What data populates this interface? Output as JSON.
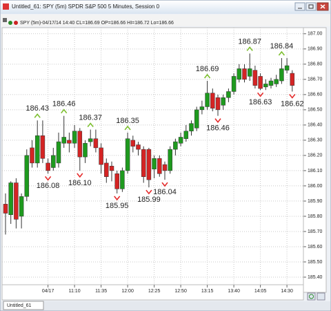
{
  "window": {
    "title": "Untitled_61: SPY (5m) SPDR S&P 500 5 Minutes, Session 0",
    "tab": "Untitled_61"
  },
  "chart_data": {
    "type": "candlestick",
    "subtitle": "SPY (5m)-04/17/14 14:40 CL=186.69 OP=186.66 HI=186.72 Lo=186.66",
    "categories": [
      null,
      null,
      null,
      null,
      null,
      null,
      null,
      null,
      "04/17",
      null,
      null,
      null,
      null,
      "11:10",
      null,
      null,
      null,
      null,
      "11:35",
      null,
      null,
      null,
      null,
      "12:00",
      null,
      null,
      null,
      null,
      "12:25",
      null,
      null,
      null,
      null,
      "12:50",
      null,
      null,
      null,
      null,
      "13:15",
      null,
      null,
      null,
      null,
      "13:40",
      null,
      null,
      null,
      null,
      "14:05",
      null,
      null,
      null,
      null,
      "14:30",
      null
    ],
    "open": [
      185.88,
      185.81,
      186.02,
      185.8,
      185.93,
      186.25,
      186.15,
      186.33,
      186.15,
      186.12,
      186.15,
      186.28,
      186.3,
      186.28,
      186.36,
      186.19,
      186.29,
      186.31,
      186.25,
      186.15,
      186.13,
      186.08,
      185.98,
      186.1,
      186.3,
      186.27,
      186.24,
      186.24,
      186.11,
      186.18,
      186.14,
      186.1,
      186.24,
      186.28,
      186.31,
      186.36,
      186.38,
      186.5,
      186.52,
      186.61,
      186.58,
      186.53,
      186.58,
      186.62,
      186.7,
      186.77,
      186.72,
      186.76,
      186.72,
      186.65,
      186.66,
      186.67,
      186.69,
      186.76,
      186.74
    ],
    "high": [
      185.95,
      186.03,
      186.05,
      185.95,
      186.24,
      186.3,
      186.43,
      186.43,
      186.18,
      186.25,
      186.35,
      186.46,
      186.35,
      186.4,
      186.38,
      186.3,
      186.37,
      186.37,
      186.28,
      186.18,
      186.16,
      186.1,
      186.12,
      186.35,
      186.33,
      186.29,
      186.26,
      186.25,
      186.2,
      186.2,
      186.16,
      186.26,
      186.31,
      186.35,
      186.4,
      186.43,
      186.52,
      186.56,
      186.69,
      186.64,
      186.6,
      186.6,
      186.64,
      186.74,
      186.8,
      186.8,
      186.87,
      186.79,
      186.74,
      186.7,
      186.71,
      186.73,
      186.84,
      186.84,
      186.76
    ],
    "low": [
      185.68,
      185.75,
      185.72,
      185.72,
      185.9,
      186.12,
      186.12,
      186.15,
      186.08,
      186.1,
      186.12,
      186.25,
      186.22,
      186.25,
      186.1,
      186.15,
      186.26,
      186.22,
      186.08,
      186.02,
      186.03,
      185.95,
      185.96,
      186.08,
      186.22,
      186.2,
      186.02,
      185.99,
      186.05,
      186.06,
      186.04,
      186.08,
      186.2,
      186.26,
      186.29,
      186.33,
      186.36,
      186.47,
      186.5,
      186.49,
      186.46,
      186.5,
      186.55,
      186.6,
      186.68,
      186.68,
      186.69,
      186.64,
      186.63,
      186.63,
      186.64,
      186.65,
      186.67,
      186.74,
      186.62
    ],
    "close": [
      185.82,
      186.02,
      185.78,
      185.93,
      186.2,
      186.15,
      186.33,
      186.18,
      186.1,
      186.2,
      186.29,
      186.32,
      186.28,
      186.36,
      186.19,
      186.28,
      186.31,
      186.25,
      186.14,
      186.06,
      186.1,
      185.98,
      186.1,
      186.31,
      186.26,
      186.24,
      186.06,
      186.04,
      186.18,
      186.08,
      186.1,
      186.24,
      186.29,
      186.32,
      186.36,
      186.41,
      186.5,
      186.52,
      186.61,
      186.51,
      186.5,
      186.58,
      186.62,
      186.72,
      186.77,
      186.7,
      186.77,
      186.66,
      186.64,
      186.67,
      186.69,
      186.7,
      186.77,
      186.79,
      186.66
    ],
    "pivot_highs": [
      null,
      null,
      null,
      null,
      null,
      null,
      186.43,
      null,
      null,
      null,
      null,
      186.46,
      null,
      null,
      null,
      null,
      186.37,
      null,
      null,
      null,
      null,
      null,
      null,
      186.35,
      null,
      null,
      null,
      null,
      null,
      null,
      null,
      null,
      null,
      null,
      null,
      null,
      null,
      null,
      186.69,
      null,
      null,
      null,
      null,
      null,
      null,
      null,
      186.87,
      null,
      null,
      null,
      null,
      null,
      186.84,
      null,
      null
    ],
    "pivot_lows": [
      null,
      null,
      null,
      null,
      null,
      null,
      null,
      null,
      186.08,
      null,
      null,
      null,
      null,
      null,
      {
        "value": 186.1,
        "label": "186.10"
      },
      null,
      null,
      null,
      null,
      null,
      null,
      185.95,
      null,
      null,
      null,
      null,
      null,
      185.99,
      null,
      null,
      186.04,
      null,
      null,
      null,
      null,
      null,
      null,
      null,
      null,
      null,
      186.46,
      null,
      null,
      null,
      null,
      null,
      null,
      null,
      186.63,
      null,
      null,
      null,
      null,
      null,
      186.62
    ],
    "up_color": "#1e9a1e",
    "down_color": "#d42424",
    "pivot_high_color": "#7cbf2e",
    "pivot_low_color": "#e52b2b",
    "ylim": [
      185.35,
      187.04
    ],
    "yticks": [
      {
        "value": 185.4,
        "label": "185.40"
      },
      {
        "value": 185.5,
        "label": "185.50"
      },
      {
        "value": 185.6,
        "label": "185.60"
      },
      {
        "value": 185.7,
        "label": "185.70"
      },
      {
        "value": 185.8,
        "label": "185.80"
      },
      {
        "value": 185.9,
        "label": "185.90"
      },
      {
        "value": 186,
        "label": "186.00"
      },
      {
        "value": 186.1,
        "label": "186.10"
      },
      {
        "value": 186.2,
        "label": "186.20"
      },
      {
        "value": 186.3,
        "label": "186.30"
      },
      {
        "value": 186.4,
        "label": "186.40"
      },
      {
        "value": 186.5,
        "label": "186.50"
      },
      {
        "value": 186.6,
        "label": "186.60"
      },
      {
        "value": 186.7,
        "label": "186.70"
      },
      {
        "value": 186.8,
        "label": "186.80"
      },
      {
        "value": 186.9,
        "label": "186.90"
      },
      {
        "value": 187,
        "label": "187.00"
      }
    ],
    "grid": true
  }
}
